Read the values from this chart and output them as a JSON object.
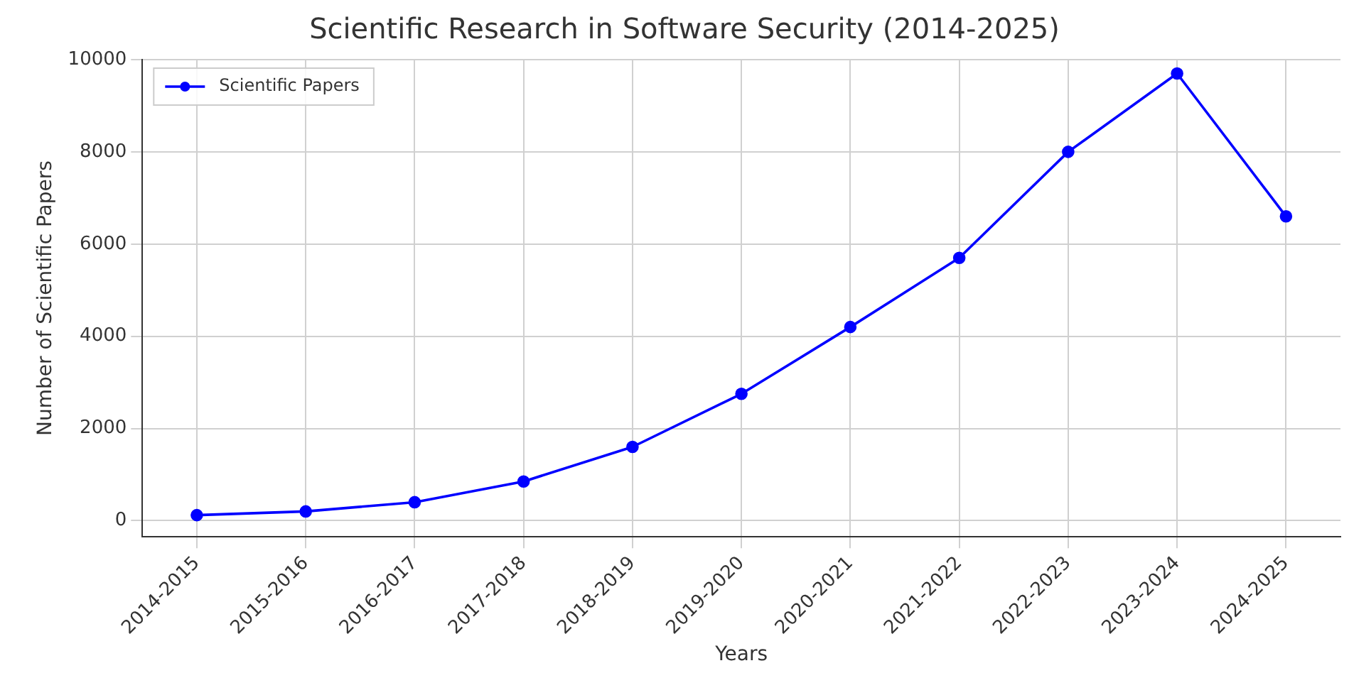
{
  "chart_data": {
    "type": "line",
    "title": "Scientific Research in Software Security (2014-2025)",
    "xlabel": "Years",
    "ylabel": "Number of Scientific Papers",
    "categories": [
      "2014-2015",
      "2015-2016",
      "2016-2017",
      "2017-2018",
      "2018-2019",
      "2019-2020",
      "2020-2021",
      "2021-2022",
      "2022-2023",
      "2023-2024",
      "2024-2025"
    ],
    "series": [
      {
        "name": "Scientific Papers",
        "color": "#0000ff",
        "values": [
          120,
          200,
          400,
          850,
          1600,
          2750,
          4200,
          5700,
          8000,
          9700,
          6600
        ]
      }
    ],
    "ylim": [
      -350,
      10000
    ],
    "yticks": [
      0,
      2000,
      4000,
      6000,
      8000,
      10000
    ],
    "grid": true,
    "legend": "top left",
    "marker": "circle",
    "line_style": "solid"
  }
}
